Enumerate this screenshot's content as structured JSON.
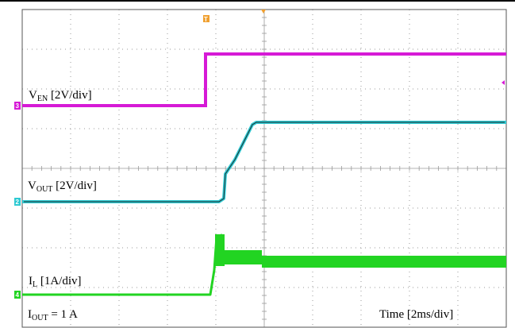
{
  "chart_data": {
    "type": "line",
    "title": "",
    "xlabel": "",
    "ylabel": "",
    "grid": true,
    "divisions": {
      "x": 10,
      "y": 8
    },
    "x": [
      0,
      3.4,
      3.5,
      4.2,
      4.3,
      4.5,
      4.8,
      5.0,
      5.6,
      10
    ],
    "series": [
      {
        "name": "V<sub>EN</sub> [2V/div]",
        "values": [
          0,
          0,
          5,
          5,
          5,
          5,
          5,
          5,
          5,
          5
        ]
      },
      {
        "name": "V<sub>OUT</sub> [2V/div]",
        "values": [
          0,
          0,
          0,
          0,
          0.3,
          0.3,
          1.5,
          2.3,
          3.3,
          3.3
        ]
      },
      {
        "name": "I<sub>L</sub> [1A/div]",
        "values": [
          0,
          0,
          0,
          0,
          0.3,
          1.5,
          1.6,
          0.9,
          1.0,
          1.0
        ]
      }
    ]
  },
  "labels": {
    "ven_main": "V",
    "ven_sub": "EN",
    "ven_scale": " [2V/div]",
    "vout_main": "V",
    "vout_sub": "OUT",
    "vout_scale": " [2V/div]",
    "il_main": "I",
    "il_sub": "L",
    "il_scale": " [1A/div]",
    "iout_main": "I",
    "iout_sub": "OUT",
    "iout_value": " = 1 A",
    "time_scale": "Time [2ms/div]"
  },
  "markers": {
    "trigger": "T",
    "ch3": "3",
    "ch2": "2",
    "ch4": "4"
  },
  "colors": {
    "ven": "#d61ad6",
    "vout": "#2ec9d2",
    "il": "#22d422",
    "trigger": "#f0a030",
    "grid": "#9a9a9a",
    "border": "#555555"
  }
}
